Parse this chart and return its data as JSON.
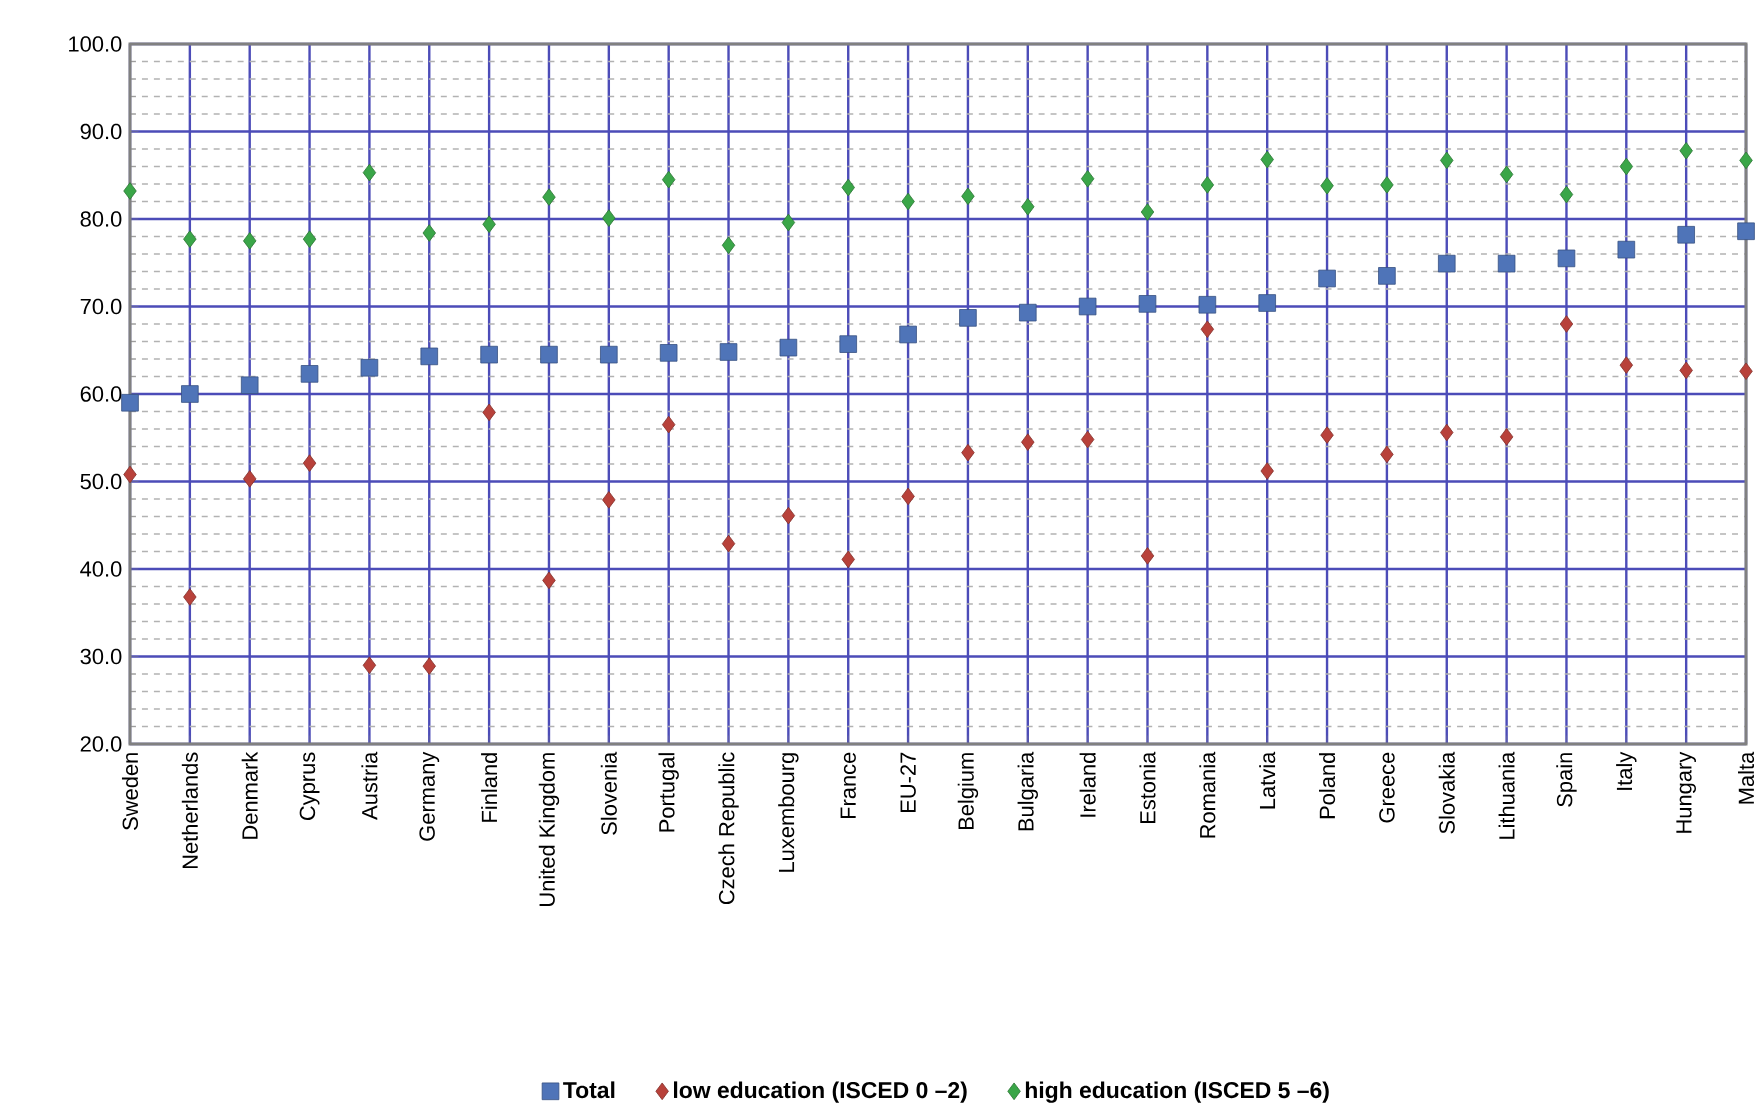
{
  "chart_data": {
    "type": "scatter",
    "categories": [
      "Sweden",
      "Netherlands",
      "Denmark",
      "Cyprus",
      "Austria",
      "Germany",
      "Finland",
      "United Kingdom",
      "Slovenia",
      "Portugal",
      "Czech Republic",
      "Luxembourg",
      "France",
      "EU-27",
      "Belgium",
      "Bulgaria",
      "Ireland",
      "Estonia",
      "Romania",
      "Latvia",
      "Poland",
      "Greece",
      "Slovakia",
      "Lithuania",
      "Spain",
      "Italy",
      "Hungary",
      "Malta"
    ],
    "series": [
      {
        "name": "Total",
        "color": "#4f74b8",
        "marker": "square",
        "values": [
          59,
          60,
          61,
          62.3,
          63,
          64.3,
          64.5,
          64.5,
          64.5,
          64.7,
          64.8,
          65.3,
          65.7,
          66.8,
          68.7,
          69.3,
          70,
          70.3,
          70.2,
          70.4,
          73.2,
          73.5,
          74.9,
          74.9,
          75.5,
          76.5,
          78.2,
          78.6
        ]
      },
      {
        "name": "low education (ISCED 0 –2)",
        "color": "#b8413a",
        "marker": "diamond",
        "values": [
          50.8,
          36.8,
          50.3,
          52.1,
          29,
          28.9,
          57.9,
          38.7,
          47.9,
          56.5,
          42.9,
          46.1,
          41.1,
          48.3,
          53.3,
          54.5,
          54.8,
          41.5,
          67.4,
          51.2,
          55.3,
          53.1,
          55.6,
          55.1,
          68,
          63.3,
          62.7,
          62.6
        ]
      },
      {
        "name": "high education (ISCED 5 –6)",
        "color": "#3aa648",
        "marker": "diamond",
        "values": [
          83.2,
          77.7,
          77.5,
          77.7,
          85.3,
          78.4,
          79.4,
          82.5,
          80.1,
          84.5,
          77,
          79.6,
          83.6,
          82,
          82.6,
          81.4,
          84.6,
          80.8,
          83.9,
          86.8,
          83.8,
          83.9,
          86.7,
          85.1,
          82.8,
          86,
          87.8,
          86.7
        ]
      }
    ],
    "ylim": [
      20,
      100
    ],
    "yticks": [
      {
        "value": 20,
        "label": "20.0"
      },
      {
        "value": 30,
        "label": "30.0"
      },
      {
        "value": 40,
        "label": "40.0"
      },
      {
        "value": 50,
        "label": "50.0"
      },
      {
        "value": 60,
        "label": "60.0"
      },
      {
        "value": 70,
        "label": "70.0"
      },
      {
        "value": 80,
        "label": "80.0"
      },
      {
        "value": 90,
        "label": "90.0"
      },
      {
        "value": 100,
        "label": "100.0"
      }
    ],
    "grid": true,
    "legend": "bottom"
  }
}
